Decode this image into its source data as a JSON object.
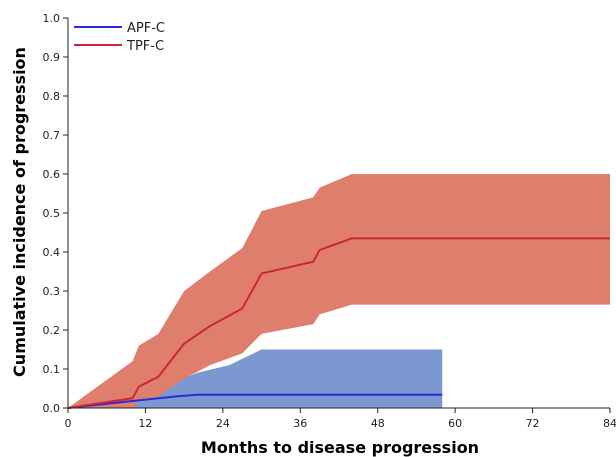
{
  "chart_data": {
    "type": "line",
    "title": "",
    "xlabel": "Months to disease progression",
    "ylabel": "Cumulative incidence of progression",
    "xlim": [
      0,
      84
    ],
    "ylim": [
      0,
      1.0
    ],
    "xticks": [
      0,
      12,
      24,
      36,
      48,
      60,
      72,
      84
    ],
    "yticks": [
      0.0,
      0.1,
      0.2,
      0.3,
      0.4,
      0.5,
      0.6,
      0.7,
      0.8,
      0.9,
      1.0
    ],
    "xtick_labels": [
      "0",
      "12",
      "24",
      "36",
      "48",
      "60",
      "72",
      "84"
    ],
    "ytick_labels": [
      "0.0",
      "0.1",
      "0.2",
      "0.3",
      "0.4",
      "0.5",
      "0.6",
      "0.7",
      "0.8",
      "0.9",
      "1.0"
    ],
    "legend_position": "top-left",
    "grid": false,
    "series": [
      {
        "name": "APF-C",
        "color": "#2b2bd8",
        "band_color": "#7b98d0",
        "x": [
          0,
          5,
          10,
          14,
          17,
          20,
          25,
          30,
          40,
          58
        ],
        "y": [
          0,
          0.009,
          0.018,
          0.025,
          0.03,
          0.034,
          0.034,
          0.034,
          0.034,
          0.034
        ],
        "lower": [
          0,
          0,
          0,
          0,
          0,
          0,
          0,
          0,
          0,
          0
        ],
        "upper": [
          0,
          0.02,
          0.035,
          0.05,
          0.07,
          0.09,
          0.11,
          0.15,
          0.15,
          0.15
        ]
      },
      {
        "name": "TPF-C",
        "color": "#c8282e",
        "band_color": "#e07e6e",
        "x": [
          0,
          10,
          11,
          14,
          18,
          22,
          27,
          30,
          38,
          39,
          44,
          84
        ],
        "y": [
          0,
          0.025,
          0.055,
          0.08,
          0.165,
          0.21,
          0.255,
          0.345,
          0.375,
          0.405,
          0.435,
          0.435
        ],
        "lower": [
          0,
          0,
          0.02,
          0.03,
          0.075,
          0.11,
          0.14,
          0.19,
          0.215,
          0.24,
          0.265,
          0.265
        ],
        "upper": [
          0,
          0.12,
          0.16,
          0.19,
          0.3,
          0.35,
          0.41,
          0.505,
          0.54,
          0.565,
          0.6,
          0.6
        ]
      }
    ]
  }
}
